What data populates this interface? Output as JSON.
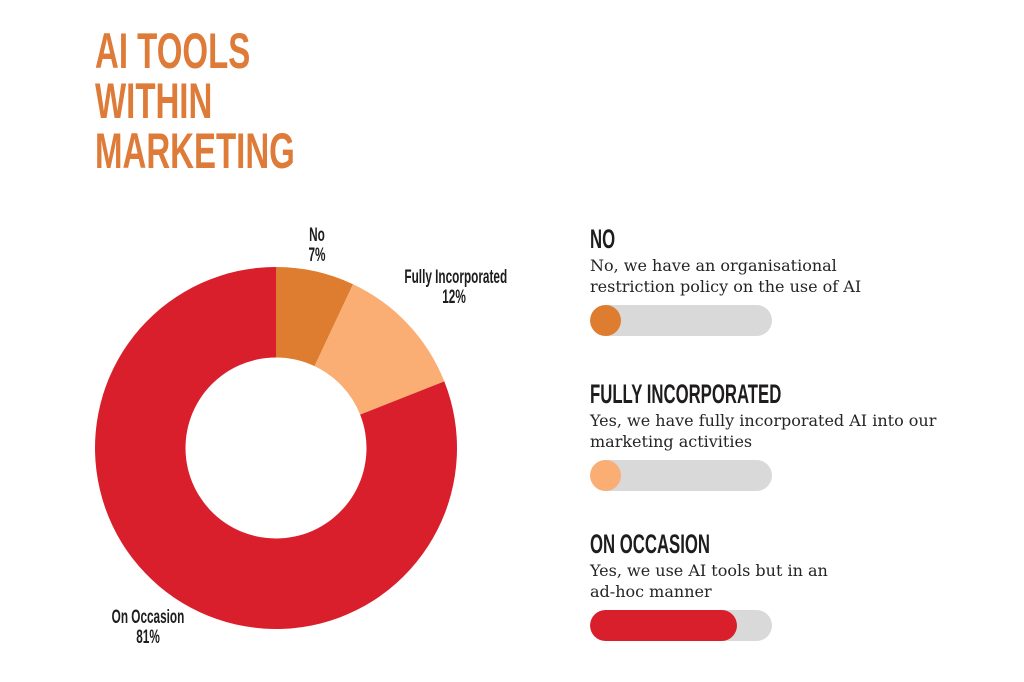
{
  "title": {
    "lines": [
      "AI TOOLS",
      "WITHIN",
      "MARKETING"
    ],
    "color": "#DE7B38"
  },
  "chart_data": {
    "type": "pie",
    "variant": "donut",
    "title": "AI Tools within Marketing",
    "inner_radius_ratio": 0.5,
    "start_angle_deg": 0,
    "direction": "clockwise",
    "categories": [
      "No",
      "Fully Incorporated",
      "On Occasion"
    ],
    "values": [
      7,
      12,
      81
    ],
    "unit": "%",
    "colors": [
      "#DE7D30",
      "#FAAE73",
      "#DA1F2C"
    ],
    "slice_labels": [
      {
        "name": "No",
        "pct": "7%"
      },
      {
        "name": "Fully Incorporated",
        "pct": "12%"
      },
      {
        "name": "On Occasion",
        "pct": "81%"
      }
    ],
    "legend_position": "right",
    "grid": false
  },
  "legend": {
    "track_color": "#D9D9D9",
    "items": [
      {
        "heading": "NO",
        "lines": [
          "No, we have an organisational",
          "restriction policy on the use of AI"
        ],
        "pct": 7,
        "color": "#DE7D30"
      },
      {
        "heading": "FULLY INCORPORATED",
        "lines": [
          "Yes, we have fully incorporated AI into our",
          "marketing activities"
        ],
        "pct": 12,
        "color": "#FAAE73"
      },
      {
        "heading": "ON OCCASION",
        "lines": [
          "Yes, we use AI tools but in an",
          "ad-hoc manner"
        ],
        "pct": 81,
        "color": "#DA1F2C"
      }
    ]
  }
}
